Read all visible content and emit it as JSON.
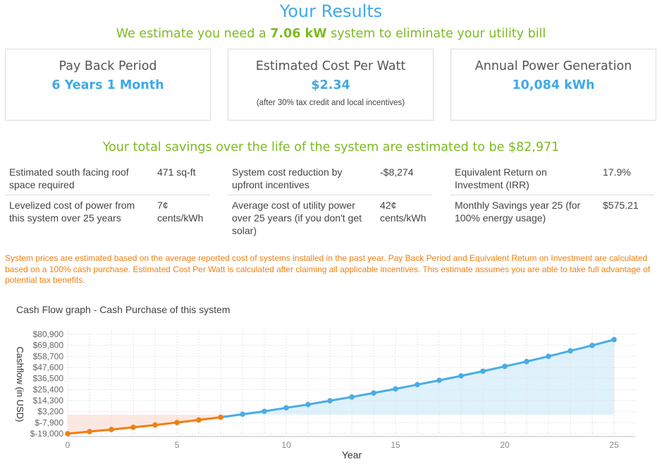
{
  "header": {
    "title": "Your Results",
    "subtitle_pre": "We estimate you need a ",
    "subtitle_value": "7.06 kW",
    "subtitle_post": " system to eliminate your utility bill"
  },
  "cards": [
    {
      "title": "Pay Back Period",
      "value": "6 Years 1 Month",
      "note": ""
    },
    {
      "title": "Estimated Cost Per Watt",
      "value": "$2.34",
      "note": "(after 30% tax credit and local incentives)"
    },
    {
      "title": "Annual Power Generation",
      "value": "10,084 kWh",
      "note": ""
    }
  ],
  "savings_text": "Your total savings over the life of the system are estimated to be $82,971",
  "stats": [
    [
      {
        "label": "Estimated south facing roof space required",
        "value": "471 sq-ft"
      },
      {
        "label": "Levelized cost of power from this system over 25 years",
        "value": "7¢ cents/kWh"
      }
    ],
    [
      {
        "label": "System cost reduction by upfront incentives",
        "value": "-$8,274"
      },
      {
        "label": "Average cost of utility power over 25 years (if you don't get solar)",
        "value": "42¢ cents/kWh"
      }
    ],
    [
      {
        "label": "Equivalent Return on Investment (IRR)",
        "value": "17.9%"
      },
      {
        "label": "Monthly Savings year 25 (for 100% energy usage)",
        "value": "$575.21"
      }
    ]
  ],
  "disclaimer": "System prices are estimated based on the average reported cost of systems installed in the past year. Pay Back Period and Equivalent Return on Investment are calculated based on a 100% cash purchase. Estimated Cost Per Watt is calculated after claiming all applicable incentives. This estimate assumes you are able to take full advantage of potential tax benefits.",
  "colors": {
    "accent_blue": "#3fa9e6",
    "accent_green": "#7dba22",
    "warning_orange": "#f07f10",
    "negative_line": "#f07f10",
    "positive_line": "#4aace6"
  },
  "chart_data": {
    "type": "line",
    "title": "Cash Flow graph - Cash Purchase of this system",
    "xlabel": "Year",
    "ylabel": "Cashflow (in USD)",
    "x": [
      0,
      1,
      2,
      3,
      4,
      5,
      6,
      7,
      8,
      9,
      10,
      11,
      12,
      13,
      14,
      15,
      16,
      17,
      18,
      19,
      20,
      21,
      22,
      23,
      24,
      25
    ],
    "values": [
      -19000,
      -16900,
      -14800,
      -12600,
      -10300,
      -7800,
      -5200,
      -2500,
      500,
      3500,
      7000,
      10300,
      14100,
      17900,
      21900,
      26000,
      30300,
      34600,
      39100,
      43800,
      48600,
      53500,
      58700,
      64200,
      69700,
      75500
    ],
    "series": [
      {
        "values": [
          -19000,
          -16900,
          -14800,
          -12600,
          -10300,
          -7800,
          -5200,
          -2500,
          500,
          3500,
          7000,
          10300,
          14100,
          17900,
          21900,
          26000,
          30300,
          34600,
          39100,
          43800,
          48600,
          53500,
          58700,
          64200,
          69700,
          75500
        ]
      }
    ],
    "xticks": [
      0,
      5,
      10,
      15,
      20,
      25
    ],
    "yticks": [
      -19000,
      -7900,
      3200,
      14300,
      25400,
      36500,
      47600,
      58700,
      69800,
      80900
    ],
    "ytick_labels": [
      "$-19,000",
      "$-7,900",
      "$3,200",
      "$14,300",
      "$25,400",
      "$36,500",
      "$47,600",
      "$58,700",
      "$69,800",
      "$80,900"
    ],
    "xlim": [
      0,
      25
    ],
    "ylim": [
      -19000,
      80900
    ],
    "grid": true,
    "negative_color": "#f07f10",
    "positive_color": "#4aace6"
  }
}
